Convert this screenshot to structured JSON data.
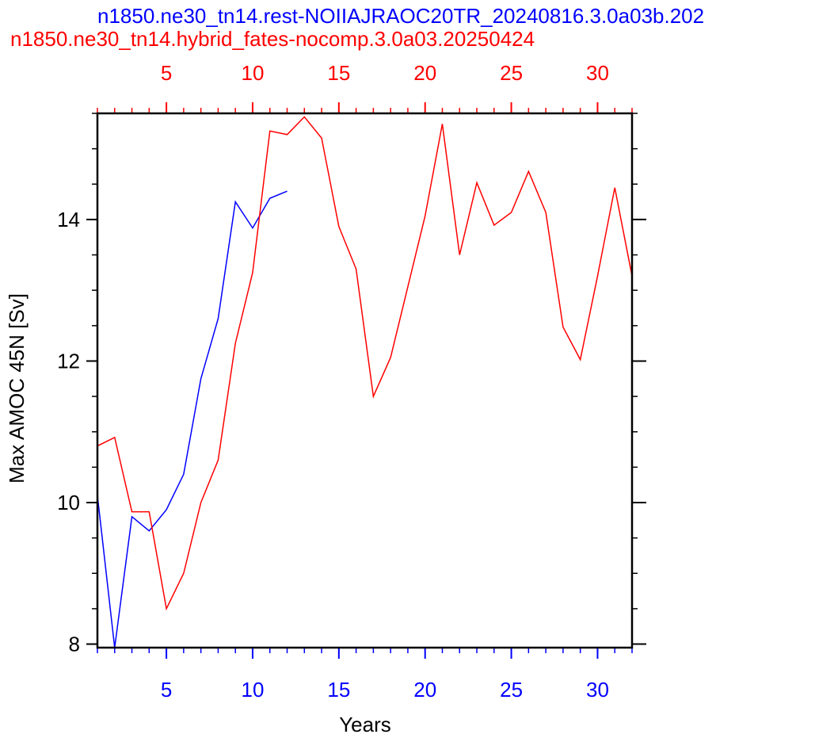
{
  "chart_data": {
    "type": "line",
    "title_top": "n1850.ne30_tn14.rest-NOIIAJRAOC20TR_20240816.3.0a03b.202",
    "title_second": "n1850.ne30_tn14.hybrid_fates-nocomp.3.0a03.20250424",
    "ylabel": "Max AMOC 45N [Sv]",
    "xlabel": "Years",
    "xlim": [
      1,
      32
    ],
    "ylim": [
      7.95,
      15.5
    ],
    "y_ticks": [
      8,
      10,
      12,
      14
    ],
    "y_tick_labels": [
      "8",
      "10",
      "12",
      "14"
    ],
    "x_ticks_bottom": [
      5,
      10,
      15,
      20,
      25,
      30
    ],
    "x_tick_labels_bottom": [
      "5",
      "10",
      "15",
      "20",
      "25",
      "30"
    ],
    "x_ticks_top": [
      5,
      10,
      15,
      20,
      25,
      30
    ],
    "x_tick_labels_top": [
      "5",
      "10",
      "15",
      "20",
      "25",
      "30"
    ],
    "grid": false,
    "series": [
      {
        "color": "#0000ff",
        "x": [
          1,
          2,
          3,
          4,
          5,
          6,
          7,
          8,
          9,
          10,
          11,
          12
        ],
        "values": [
          10.1,
          7.95,
          9.8,
          9.6,
          9.9,
          10.4,
          11.75,
          12.6,
          14.25,
          13.88,
          14.3,
          14.4
        ]
      },
      {
        "color": "#ff0000",
        "x": [
          1,
          2,
          3,
          4,
          5,
          6,
          7,
          8,
          9,
          10,
          11,
          12,
          13,
          14,
          15,
          16,
          17,
          18,
          19,
          20,
          21,
          22,
          23,
          24,
          25,
          26,
          27,
          28,
          29,
          30,
          31,
          32
        ],
        "values": [
          10.8,
          10.92,
          9.87,
          9.87,
          8.5,
          9.0,
          10.0,
          10.6,
          12.25,
          13.25,
          15.25,
          15.2,
          15.45,
          15.15,
          13.9,
          13.3,
          11.5,
          12.05,
          13.05,
          14.05,
          15.35,
          13.5,
          14.52,
          13.92,
          14.1,
          14.68,
          14.1,
          12.48,
          12.02,
          13.2,
          14.45,
          13.2
        ]
      }
    ]
  }
}
